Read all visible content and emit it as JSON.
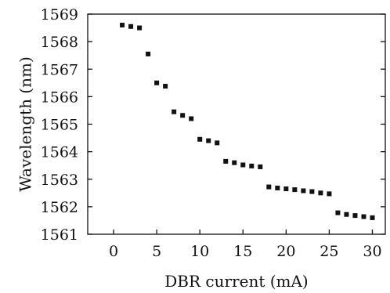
{
  "chart_data": {
    "type": "scatter",
    "title": "",
    "xlabel": "DBR current (mA)",
    "ylabel": "Wavelength (nm)",
    "xlim": [
      -3,
      31.5
    ],
    "ylim": [
      1561,
      1569
    ],
    "xticks": [
      0,
      5,
      10,
      15,
      20,
      25,
      30
    ],
    "xtick_labels": [
      "0",
      "5",
      "10",
      "15",
      "20",
      "25",
      "30"
    ],
    "yticks": [
      1561,
      1562,
      1563,
      1564,
      1565,
      1566,
      1567,
      1568,
      1569
    ],
    "ytick_labels": [
      "1561",
      "1562",
      "1563",
      "1564",
      "1565",
      "1566",
      "1567",
      "1568",
      "1569"
    ],
    "grid": false,
    "marker": "square",
    "x": [
      1,
      2,
      3,
      4,
      5,
      6,
      7,
      8,
      9,
      10,
      11,
      12,
      13,
      14,
      15,
      16,
      17,
      18,
      19,
      20,
      21,
      22,
      23,
      24,
      25,
      26,
      27,
      28,
      29,
      30
    ],
    "y": [
      1568.6,
      1568.55,
      1568.5,
      1567.55,
      1566.5,
      1566.38,
      1565.45,
      1565.32,
      1565.2,
      1564.45,
      1564.4,
      1564.32,
      1563.65,
      1563.6,
      1563.52,
      1563.48,
      1563.45,
      1562.72,
      1562.68,
      1562.65,
      1562.62,
      1562.58,
      1562.55,
      1562.5,
      1562.47,
      1561.78,
      1561.72,
      1561.68,
      1561.64,
      1561.6
    ]
  }
}
